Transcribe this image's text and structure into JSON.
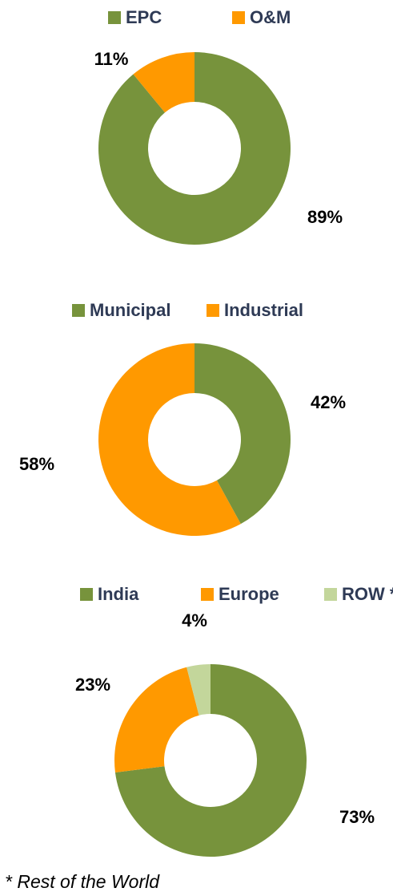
{
  "chart_data": [
    {
      "type": "donut",
      "categories": [
        "EPC",
        "O&M"
      ],
      "values": [
        89,
        11
      ],
      "value_labels": [
        "89%",
        "11%"
      ],
      "colors": [
        "#77933c",
        "#ff9900"
      ]
    },
    {
      "type": "donut",
      "categories": [
        "Municipal",
        "Industrial"
      ],
      "values": [
        42,
        58
      ],
      "value_labels": [
        "42%",
        "58%"
      ],
      "colors": [
        "#77933c",
        "#ff9900"
      ]
    },
    {
      "type": "donut",
      "categories": [
        "India",
        "Europe",
        "ROW *"
      ],
      "values": [
        73,
        23,
        4
      ],
      "value_labels": [
        "73%",
        "23%",
        "4%"
      ],
      "colors": [
        "#77933c",
        "#ff9900",
        "#c3d69b"
      ]
    }
  ],
  "footnote": "* Rest of the World"
}
